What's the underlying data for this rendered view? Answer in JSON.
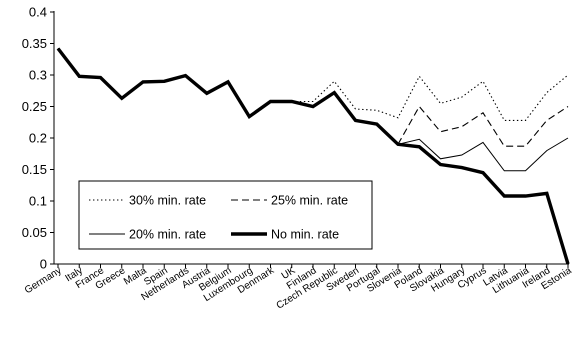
{
  "chart_data": {
    "type": "line",
    "categories": [
      "Germany",
      "Italy",
      "France",
      "Greece",
      "Malta",
      "Spain",
      "Netherlands",
      "Austria",
      "Belgium",
      "Luxembourg",
      "Denmark",
      "UK",
      "Finland",
      "Czech Republic",
      "Sweden",
      "Portugal",
      "Slovenia",
      "Poland",
      "Slovakia",
      "Hungary",
      "Cyprus",
      "Latvia",
      "Lithuania",
      "Ireland",
      "Estonia"
    ],
    "ylim": [
      0,
      0.4
    ],
    "yticks": [
      "0",
      "0.05",
      "0.1",
      "0.15",
      "0.2",
      "0.25",
      "0.3",
      "0.35",
      "0.4"
    ],
    "ytick_values": [
      0,
      0.05,
      0.1,
      0.15,
      0.2,
      0.25,
      0.3,
      0.35,
      0.4
    ],
    "grid": false,
    "legend_position": "lower-left",
    "series": [
      {
        "name": "30% min. rate",
        "style": "dotted",
        "values": [
          0.342,
          0.298,
          0.296,
          0.263,
          0.289,
          0.29,
          0.299,
          0.271,
          0.289,
          0.234,
          0.258,
          0.258,
          0.258,
          0.29,
          0.246,
          0.244,
          0.232,
          0.298,
          0.255,
          0.265,
          0.29,
          0.228,
          0.228,
          0.272,
          0.3
        ]
      },
      {
        "name": "25% min. rate",
        "style": "dashed",
        "values": [
          0.342,
          0.298,
          0.296,
          0.263,
          0.289,
          0.29,
          0.299,
          0.271,
          0.289,
          0.234,
          0.258,
          0.258,
          0.25,
          0.272,
          0.228,
          0.222,
          0.19,
          0.25,
          0.21,
          0.218,
          0.24,
          0.187,
          0.187,
          0.228,
          0.25
        ]
      },
      {
        "name": "20% min. rate",
        "style": "thin",
        "values": [
          0.342,
          0.298,
          0.296,
          0.263,
          0.289,
          0.29,
          0.299,
          0.271,
          0.289,
          0.234,
          0.258,
          0.258,
          0.25,
          0.272,
          0.228,
          0.222,
          0.19,
          0.198,
          0.167,
          0.173,
          0.193,
          0.148,
          0.148,
          0.18,
          0.2
        ]
      },
      {
        "name": "No min. rate",
        "style": "thick",
        "values": [
          0.342,
          0.298,
          0.296,
          0.263,
          0.289,
          0.29,
          0.299,
          0.271,
          0.289,
          0.234,
          0.258,
          0.258,
          0.25,
          0.272,
          0.228,
          0.222,
          0.19,
          0.186,
          0.158,
          0.153,
          0.145,
          0.108,
          0.108,
          0.112,
          0.0
        ]
      }
    ]
  }
}
